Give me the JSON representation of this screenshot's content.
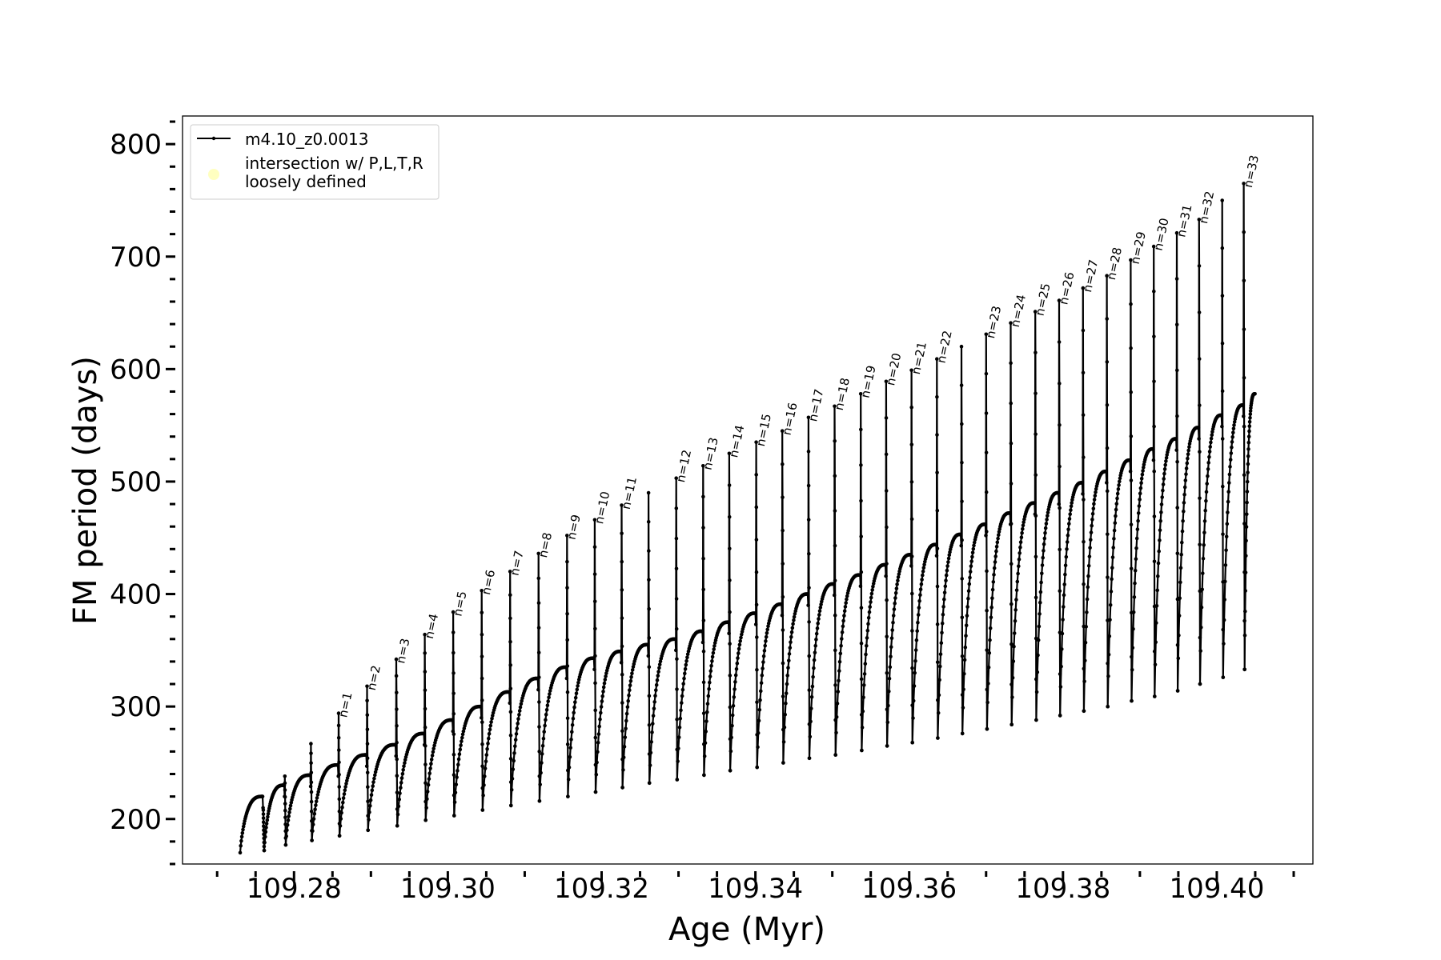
{
  "chart_data": {
    "type": "line",
    "title": "",
    "xlabel": "Age (Myr)",
    "ylabel": "FM period (days)",
    "xlim": [
      109.2655,
      109.4125
    ],
    "ylim": [
      160,
      825
    ],
    "xticks": [
      109.28,
      109.3,
      109.32,
      109.34,
      109.36,
      109.38,
      109.4
    ],
    "xtick_labels": [
      "109.28",
      "109.30",
      "109.32",
      "109.34",
      "109.36",
      "109.38",
      "109.40"
    ],
    "yticks": [
      200,
      300,
      400,
      500,
      600,
      700,
      800
    ],
    "ytick_labels": [
      "200",
      "300",
      "400",
      "500",
      "600",
      "700",
      "800"
    ],
    "grid": false,
    "legend": {
      "position": "top-left",
      "entries": [
        {
          "label": "m4.10_z0.0013",
          "marker": "line-with-dots",
          "color": "#000000"
        },
        {
          "label": "intersection w/ P,L,T,R\nloosely defined",
          "marker": "circle",
          "color": "#ffffb0"
        }
      ]
    },
    "series": [
      {
        "name": "m4.10_z0.0013",
        "color": "#000000",
        "start": {
          "age": 109.273,
          "period": 170
        },
        "pulses": [
          {
            "age": 109.276,
            "peak": 208,
            "trough": 220,
            "min": 172,
            "label": ""
          },
          {
            "age": 109.2788,
            "peak": 238,
            "trough": 230,
            "min": 177,
            "label": ""
          },
          {
            "age": 109.2822,
            "peak": 267,
            "trough": 239,
            "min": 181,
            "label": ""
          },
          {
            "age": 109.2858,
            "peak": 294,
            "trough": 248,
            "min": 185,
            "label": "n=1"
          },
          {
            "age": 109.2895,
            "peak": 318,
            "trough": 257,
            "min": 190,
            "label": "n=2"
          },
          {
            "age": 109.2933,
            "peak": 342,
            "trough": 266,
            "min": 194,
            "label": "n=3"
          },
          {
            "age": 109.297,
            "peak": 364,
            "trough": 276,
            "min": 199,
            "label": "n=4"
          },
          {
            "age": 109.3007,
            "peak": 384,
            "trough": 288,
            "min": 203,
            "label": "n=5"
          },
          {
            "age": 109.3044,
            "peak": 403,
            "trough": 300,
            "min": 208,
            "label": "n=6"
          },
          {
            "age": 109.3081,
            "peak": 420,
            "trough": 313,
            "min": 212,
            "label": "n=7"
          },
          {
            "age": 109.3118,
            "peak": 436,
            "trough": 325,
            "min": 216,
            "label": "n=8"
          },
          {
            "age": 109.3155,
            "peak": 452,
            "trough": 335,
            "min": 220,
            "label": "n=9"
          },
          {
            "age": 109.3191,
            "peak": 466,
            "trough": 343,
            "min": 224,
            "label": "n=10"
          },
          {
            "age": 109.3226,
            "peak": 479,
            "trough": 349,
            "min": 228,
            "label": "n=11"
          },
          {
            "age": 109.3261,
            "peak": 490,
            "trough": 355,
            "min": 232,
            "label": ""
          },
          {
            "age": 109.3297,
            "peak": 503,
            "trough": 360,
            "min": 235,
            "label": "n=12"
          },
          {
            "age": 109.3332,
            "peak": 514,
            "trough": 367,
            "min": 239,
            "label": "n=13"
          },
          {
            "age": 109.3366,
            "peak": 525,
            "trough": 375,
            "min": 243,
            "label": "n=14"
          },
          {
            "age": 109.3401,
            "peak": 535,
            "trough": 383,
            "min": 246,
            "label": "n=15"
          },
          {
            "age": 109.3435,
            "peak": 545,
            "trough": 391,
            "min": 250,
            "label": "n=16"
          },
          {
            "age": 109.3469,
            "peak": 557,
            "trough": 400,
            "min": 254,
            "label": "n=17"
          },
          {
            "age": 109.3503,
            "peak": 567,
            "trough": 409,
            "min": 257,
            "label": "n=18"
          },
          {
            "age": 109.3537,
            "peak": 578,
            "trough": 417,
            "min": 261,
            "label": "n=19"
          },
          {
            "age": 109.357,
            "peak": 589,
            "trough": 426,
            "min": 265,
            "label": "n=20"
          },
          {
            "age": 109.3603,
            "peak": 599,
            "trough": 435,
            "min": 268,
            "label": "n=21"
          },
          {
            "age": 109.3636,
            "peak": 609,
            "trough": 444,
            "min": 272,
            "label": "n=22"
          },
          {
            "age": 109.3668,
            "peak": 620,
            "trough": 453,
            "min": 276,
            "label": ""
          },
          {
            "age": 109.37,
            "peak": 631,
            "trough": 462,
            "min": 280,
            "label": "n=23"
          },
          {
            "age": 109.3732,
            "peak": 641,
            "trough": 472,
            "min": 284,
            "label": "n=24"
          },
          {
            "age": 109.3764,
            "peak": 651,
            "trough": 481,
            "min": 288,
            "label": "n=25"
          },
          {
            "age": 109.3795,
            "peak": 661,
            "trough": 490,
            "min": 292,
            "label": "n=26"
          },
          {
            "age": 109.3826,
            "peak": 672,
            "trough": 499,
            "min": 296,
            "label": "n=27"
          },
          {
            "age": 109.3857,
            "peak": 683,
            "trough": 509,
            "min": 300,
            "label": "n=28"
          },
          {
            "age": 109.3888,
            "peak": 697,
            "trough": 519,
            "min": 305,
            "label": "n=29"
          },
          {
            "age": 109.3918,
            "peak": 709,
            "trough": 529,
            "min": 309,
            "label": "n=30"
          },
          {
            "age": 109.3948,
            "peak": 721,
            "trough": 538,
            "min": 314,
            "label": "n=31"
          },
          {
            "age": 109.3977,
            "peak": 733,
            "trough": 548,
            "min": 320,
            "label": "n=32"
          },
          {
            "age": 109.4007,
            "peak": 750,
            "trough": 559,
            "min": 326,
            "label": ""
          },
          {
            "age": 109.4035,
            "peak": 765,
            "trough": 568,
            "min": 333,
            "label": "n=33"
          }
        ],
        "end": {
          "age": 109.405,
          "period": 578
        }
      }
    ]
  }
}
